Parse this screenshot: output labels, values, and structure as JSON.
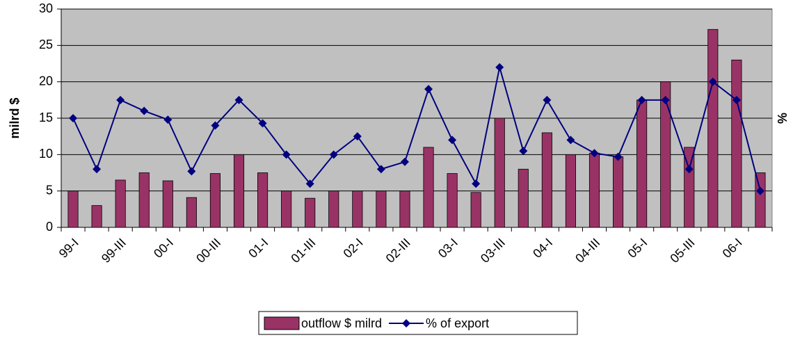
{
  "chart_data": {
    "type": "bar",
    "y_label": "milrd $",
    "y2_label": "%",
    "categories": [
      "99-I",
      null,
      "99-III",
      null,
      "00-I",
      null,
      "00-III",
      null,
      "01-I",
      null,
      "01-III",
      null,
      "02-I",
      null,
      "02-III",
      null,
      "03-I",
      null,
      "03-III",
      null,
      "04-I",
      null,
      "04-III",
      null,
      "05-I",
      null,
      "05-III",
      null,
      "06-I",
      null
    ],
    "series": [
      {
        "name": "outflow $ milrd",
        "type": "bar",
        "color": "#993366",
        "values": [
          5,
          3,
          6.5,
          7.5,
          6.4,
          4.1,
          7.4,
          10,
          7.5,
          5,
          4,
          5,
          5,
          5,
          5,
          11,
          7.4,
          4.8,
          15,
          8,
          13,
          10,
          10.2,
          9.7,
          17.5,
          20,
          11,
          27.2,
          23,
          7.5
        ]
      },
      {
        "name": "% of export",
        "type": "line",
        "color": "#000080",
        "values": [
          15,
          8,
          17.5,
          16,
          14.8,
          7.7,
          14,
          17.5,
          14.3,
          10,
          6,
          10,
          12.5,
          8,
          9,
          19,
          12,
          6,
          22,
          10.5,
          17.5,
          12,
          10.2,
          9.7,
          17.5,
          17.5,
          8,
          20,
          17.5,
          5
        ]
      }
    ],
    "ylim": [
      0,
      30
    ],
    "yticks": [
      0,
      5,
      10,
      15,
      20,
      25,
      30
    ],
    "grid": true,
    "plot_background": "#c0c0c0",
    "legend": "bottom"
  }
}
